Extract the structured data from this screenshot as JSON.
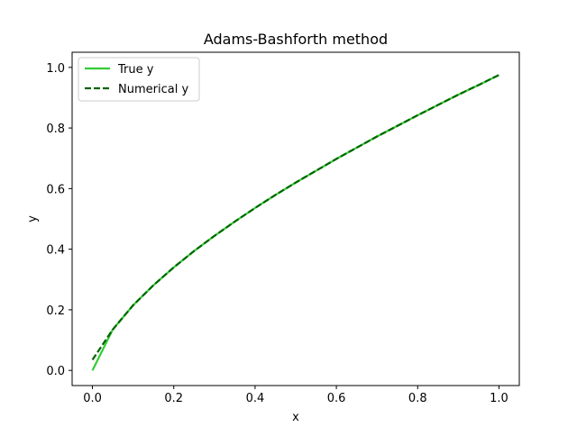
{
  "colors": {
    "true_line": "#32cd32",
    "numerical_line": "#006400",
    "axes": "#000000",
    "legend_border": "#cccccc",
    "background": "#ffffff"
  },
  "chart_data": {
    "type": "line",
    "title": "Adams-Bashforth method",
    "xlabel": "x",
    "ylabel": "y",
    "xlim": [
      -0.05,
      1.05
    ],
    "ylim": [
      -0.05,
      1.05
    ],
    "xticks": [
      0.0,
      0.2,
      0.4,
      0.6,
      0.8,
      1.0
    ],
    "xtick_labels": [
      "0.0",
      "0.2",
      "0.4",
      "0.6",
      "0.8",
      "1.0"
    ],
    "yticks": [
      0.0,
      0.2,
      0.4,
      0.6,
      0.8,
      1.0
    ],
    "ytick_labels": [
      "0.0",
      "0.2",
      "0.4",
      "0.6",
      "0.8",
      "1.0"
    ],
    "grid": false,
    "legend_position": "upper-left",
    "series": [
      {
        "name": "True y",
        "style": "solid",
        "color": "#32cd32",
        "x": [
          0.0,
          0.05,
          0.1,
          0.15,
          0.2,
          0.25,
          0.3,
          0.35,
          0.4,
          0.45,
          0.5,
          0.55,
          0.6,
          0.65,
          0.7,
          0.75,
          0.8,
          0.85,
          0.9,
          0.95,
          1.0
        ],
        "y": [
          0.0,
          0.135,
          0.215,
          0.281,
          0.34,
          0.394,
          0.444,
          0.491,
          0.536,
          0.579,
          0.62,
          0.659,
          0.698,
          0.735,
          0.772,
          0.807,
          0.842,
          0.876,
          0.91,
          0.942,
          0.975
        ]
      },
      {
        "name": "Numerical y",
        "style": "dashed",
        "color": "#006400",
        "x": [
          0.0,
          0.05,
          0.1,
          0.15,
          0.2,
          0.25,
          0.3,
          0.35,
          0.4,
          0.45,
          0.5,
          0.55,
          0.6,
          0.65,
          0.7,
          0.75,
          0.8,
          0.85,
          0.9,
          0.95,
          1.0
        ],
        "y": [
          0.035,
          0.135,
          0.215,
          0.281,
          0.34,
          0.394,
          0.444,
          0.491,
          0.536,
          0.579,
          0.62,
          0.659,
          0.698,
          0.735,
          0.772,
          0.807,
          0.842,
          0.876,
          0.91,
          0.942,
          0.975
        ]
      }
    ]
  }
}
